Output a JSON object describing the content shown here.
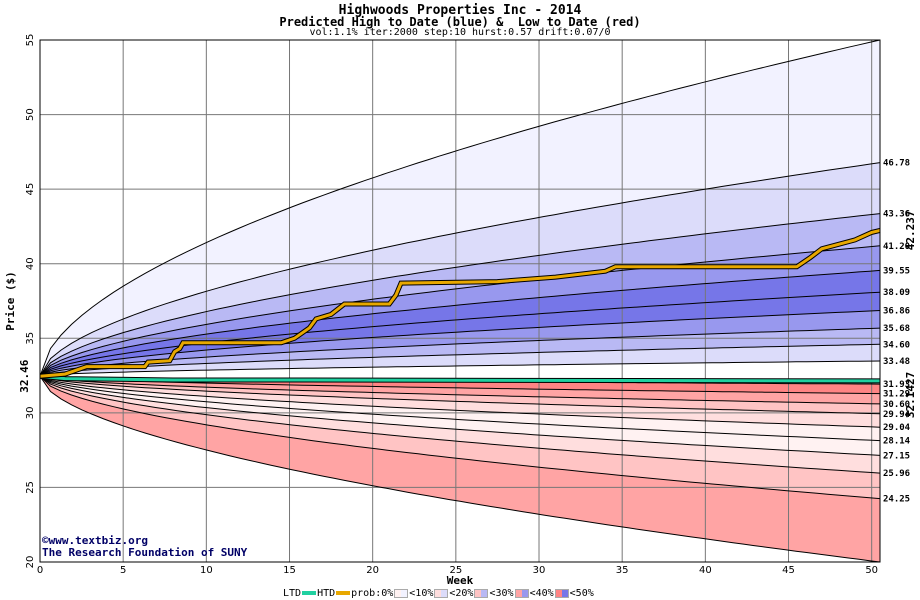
{
  "header": {
    "title": "Highwoods Properties Inc - 2014",
    "subtitle": "Predicted High to Date (blue) &  Low to Date (red)",
    "params": "vol:1.1% iter:2000 step:10 hurst:0.57 drift:0.07/0"
  },
  "credits": {
    "line1": "©www.textbiz.org",
    "line2": "The Research Foundation of SUNY"
  },
  "legend": {
    "ltd_label": "LTD",
    "htd_label": "HTD",
    "prob_label": "prob:0%",
    "bins": [
      "<10%",
      "<20%",
      "<30%",
      "<40%",
      "<50%"
    ],
    "colors": {
      "ltd": "#20d0a0",
      "htd": "#e8a800",
      "blue_bins": [
        "#f2f2ff",
        "#dcdcfa",
        "#b9b9f4",
        "#9898ee",
        "#7676e8"
      ],
      "red_bins": [
        "#fff2f2",
        "#ffdede",
        "#ffc4c4",
        "#ffa4a4",
        "#ff8484"
      ]
    }
  },
  "chart_data": {
    "type": "area",
    "x_label": "Week",
    "y_label": "Price ($)",
    "xlim": [
      0,
      50.5
    ],
    "ylim": [
      20,
      55
    ],
    "x_ticks": [
      0,
      5,
      10,
      15,
      20,
      25,
      30,
      35,
      40,
      45,
      50
    ],
    "y_ticks": [
      20,
      25,
      30,
      35,
      40,
      45,
      50,
      55
    ],
    "start_price": 32.46,
    "start_label": "32.46",
    "high_percentile_ends": [
      55,
      46.78,
      43.36,
      41.2,
      39.55,
      38.09,
      36.86,
      35.68,
      34.6,
      33.48
    ],
    "high_labels": [
      "46.78",
      "43.36",
      "41.20",
      "39.55",
      "38.09",
      "36.86",
      "35.68",
      "34.60",
      "33.48"
    ],
    "low_percentile_ends": [
      31.93,
      31.29,
      30.6,
      29.94,
      29.04,
      28.14,
      27.15,
      25.96,
      24.25,
      20
    ],
    "low_labels": [
      "31.93",
      "31.29",
      "30.60",
      "29.94",
      "29.04",
      "28.14",
      "27.15",
      "25.96",
      "24.25"
    ],
    "htd_end_label": "42.237",
    "ltd_end_label": "32.1427",
    "htd": [
      [
        0,
        32.46
      ],
      [
        1.5,
        32.6
      ],
      [
        2.8,
        33.1
      ],
      [
        6.3,
        33.1
      ],
      [
        6.5,
        33.4
      ],
      [
        7.8,
        33.5
      ],
      [
        8.1,
        34.1
      ],
      [
        8.4,
        34.3
      ],
      [
        8.6,
        34.7
      ],
      [
        14.5,
        34.7
      ],
      [
        15.3,
        35.0
      ],
      [
        16.2,
        35.7
      ],
      [
        16.6,
        36.3
      ],
      [
        17.5,
        36.6
      ],
      [
        18.3,
        37.3
      ],
      [
        21.0,
        37.3
      ],
      [
        21.4,
        37.9
      ],
      [
        21.7,
        38.7
      ],
      [
        27.5,
        38.8
      ],
      [
        31.0,
        39.1
      ],
      [
        34.0,
        39.5
      ],
      [
        34.6,
        39.8
      ],
      [
        45.5,
        39.8
      ],
      [
        46.3,
        40.4
      ],
      [
        47.0,
        41.0
      ],
      [
        49.0,
        41.6
      ],
      [
        50.0,
        42.1
      ],
      [
        50.5,
        42.237
      ]
    ],
    "ltd": [
      [
        0,
        32.46
      ],
      [
        1.5,
        32.3
      ],
      [
        8.0,
        32.2
      ],
      [
        16.0,
        32.2
      ],
      [
        50.5,
        32.1427
      ]
    ]
  }
}
